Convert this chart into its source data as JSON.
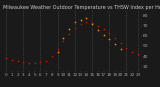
{
  "title": "Milwaukee Weather Outdoor Temperature vs THSW Index per Hour (24 Hours)",
  "title_fontsize": 3.5,
  "background_color": "#1a1a1a",
  "plot_bg_color": "#1a1a1a",
  "grid_color": "#555555",
  "hours": [
    0,
    1,
    2,
    3,
    4,
    5,
    6,
    7,
    8,
    9,
    10,
    11,
    12,
    13,
    14,
    15,
    16,
    17,
    18,
    19,
    20,
    21,
    22,
    23
  ],
  "temp_values": [
    38,
    36,
    35,
    34,
    33,
    33,
    34,
    35,
    40,
    47,
    55,
    62,
    68,
    72,
    74,
    73,
    70,
    67,
    63,
    58,
    53,
    48,
    44,
    42
  ],
  "thsw_values": [
    null,
    null,
    null,
    null,
    null,
    null,
    null,
    null,
    null,
    44,
    58,
    67,
    74,
    76,
    78,
    72,
    66,
    61,
    57,
    52,
    47,
    null,
    null,
    null
  ],
  "temp_color": "#cc1100",
  "thsw_color": "#ff8800",
  "dot_size": 1.5,
  "ylim": [
    25,
    85
  ],
  "ytick_values": [
    30,
    40,
    50,
    60,
    70,
    80
  ],
  "ylabel_fontsize": 3.2,
  "xlabel_fontsize": 3.0,
  "vgrid_hours": [
    0,
    3,
    6,
    9,
    12,
    15,
    18,
    21,
    23
  ]
}
